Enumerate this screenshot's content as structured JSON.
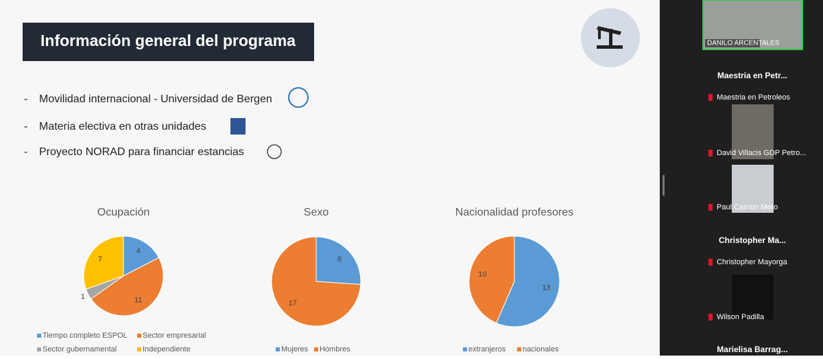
{
  "slide": {
    "title": "Información general del programa",
    "bullets": [
      "Movilidad internacional - Universidad de Bergen",
      "Materia electiva en otras unidades",
      "Proyecto NORAD para financiar estancias"
    ]
  },
  "chart_data": [
    {
      "type": "pie",
      "title": "Ocupación",
      "categories": [
        "Tiempo completo ESPOL",
        "Sector empresarial",
        "Sector gubernamental",
        "Independiente"
      ],
      "values": [
        4,
        11,
        1,
        7
      ],
      "colors": [
        "#5b9bd5",
        "#ed7d31",
        "#a5a5a5",
        "#ffc000"
      ]
    },
    {
      "type": "pie",
      "title": "Sexo",
      "categories": [
        "Mujeres",
        "Hombres"
      ],
      "values": [
        6,
        17
      ],
      "colors": [
        "#5b9bd5",
        "#ed7d31"
      ]
    },
    {
      "type": "pie",
      "title": "Nacionalidad profesores",
      "categories": [
        "extranjeros",
        "nacionales"
      ],
      "values": [
        13,
        10
      ],
      "colors": [
        "#5b9bd5",
        "#ed7d31"
      ]
    }
  ],
  "participants": {
    "presenter": "DANILO ARCENTALES",
    "list": [
      "Maestria en Petr...",
      "Maestria en Petroleos",
      "David Villacis GDP Petro...",
      "Paul Carrion Mero",
      "Christopher  Ma...",
      "Christopher Mayorga",
      "Wilson Padilla",
      "Marielisa  Barrag..."
    ]
  }
}
